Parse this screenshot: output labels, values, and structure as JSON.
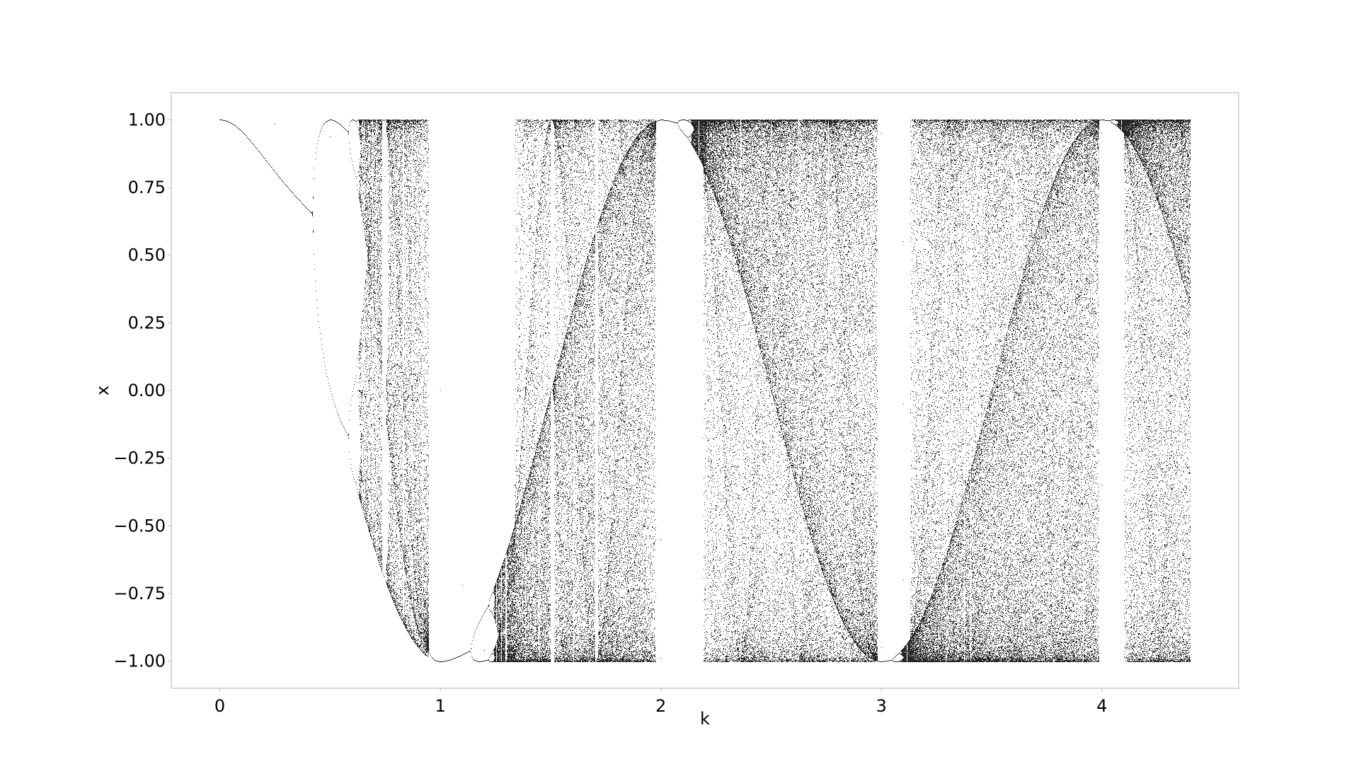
{
  "chart_data": {
    "type": "scatter",
    "title": "",
    "xlabel": "k",
    "ylabel": "x",
    "xlim": [
      -0.22,
      4.62
    ],
    "ylim": [
      -1.1,
      1.1
    ],
    "grid": false,
    "legend": "none",
    "point_color": "#000000",
    "x_ticks": [
      {
        "value": 0,
        "label": "0"
      },
      {
        "value": 1,
        "label": "1"
      },
      {
        "value": 2,
        "label": "2"
      },
      {
        "value": 3,
        "label": "3"
      },
      {
        "value": 4,
        "label": "4"
      }
    ],
    "y_ticks": [
      {
        "value": 1.0,
        "label": "1.00"
      },
      {
        "value": 0.75,
        "label": "0.75"
      },
      {
        "value": 0.5,
        "label": "0.50"
      },
      {
        "value": 0.25,
        "label": "0.25"
      },
      {
        "value": 0.0,
        "label": "0.00"
      },
      {
        "value": -0.25,
        "label": "−0.25"
      },
      {
        "value": -0.5,
        "label": "−0.50"
      },
      {
        "value": -0.75,
        "label": "−0.75"
      },
      {
        "value": -1.0,
        "label": "−1.00"
      }
    ],
    "series": [
      {
        "description_source": "iterated map x_{n+1} = cos(k * pi * x_n), x_0 = 1",
        "k_range": [
          0,
          4.4
        ],
        "points": [
          [
            0,
            1.0
          ],
          [
            0.25,
            0.984
          ],
          [
            0.5,
            0.937
          ],
          [
            0.75,
            0.79
          ],
          [
            0.9,
            0.55
          ],
          [
            1.0,
            0.0
          ],
          [
            1.1,
            -0.72
          ],
          [
            1.2,
            -0.96
          ],
          [
            1.33,
            -1.0
          ],
          [
            1.5,
            -0.97
          ],
          [
            1.7,
            -0.89
          ],
          [
            1.85,
            -0.82
          ],
          [
            2.0,
            -0.99
          ],
          [
            2.0,
            -0.55
          ],
          [
            2.2,
            -1.0
          ],
          [
            2.2,
            -0.05
          ],
          [
            2.35,
            -0.98
          ],
          [
            2.35,
            0.13
          ],
          [
            2.5,
            -1.0
          ],
          [
            2.5,
            0.45
          ],
          [
            2.7,
            0.8
          ],
          [
            2.7,
            -0.45
          ],
          [
            3.0,
            0.95
          ],
          [
            3.0,
            -0.95
          ],
          [
            3.1,
            0.55
          ],
          [
            3.1,
            -0.05
          ],
          [
            3.1,
            -0.7
          ],
          [
            3.15,
            1.0
          ],
          [
            3.5,
            0.87
          ],
          [
            3.5,
            -0.15
          ],
          [
            3.7,
            0.65
          ],
          [
            3.7,
            -0.25
          ],
          [
            3.8,
            0.55
          ],
          [
            3.8,
            -1.0
          ],
          [
            4.0,
            0.95
          ],
          [
            4.0,
            -0.35
          ],
          [
            4.15,
            1.0
          ],
          [
            4.2,
            -0.45
          ],
          [
            4.4,
            1.0
          ],
          [
            4.4,
            -1.0
          ]
        ]
      }
    ]
  }
}
